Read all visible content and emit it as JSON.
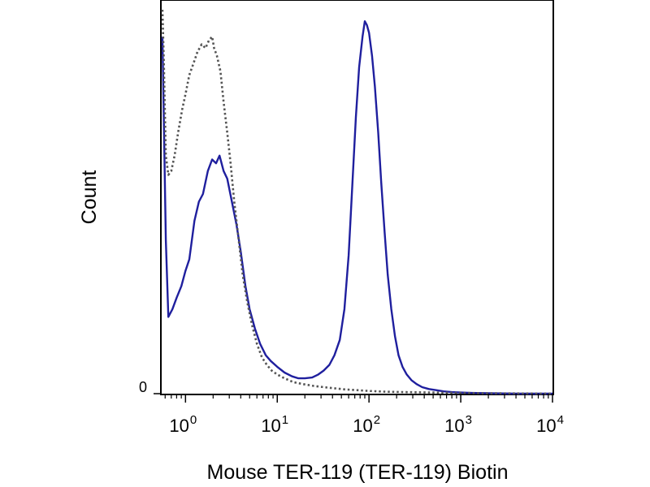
{
  "chart_data": {
    "type": "line",
    "title": "",
    "xlabel": "Mouse TER-119 (TER-119) Biotin",
    "ylabel": "Count",
    "xscale": "log",
    "xlim": [
      0.55,
      10000
    ],
    "ylim": [
      0,
      1.0
    ],
    "grid": false,
    "legend": "none",
    "x_ticks": [
      {
        "base": "10",
        "exp": "0",
        "value": 1
      },
      {
        "base": "10",
        "exp": "1",
        "value": 10
      },
      {
        "base": "10",
        "exp": "2",
        "value": 100
      },
      {
        "base": "10",
        "exp": "3",
        "value": 1000
      },
      {
        "base": "10",
        "exp": "4",
        "value": 10000
      }
    ],
    "y_ticks": [
      {
        "label": "0",
        "value": 0
      }
    ],
    "series": [
      {
        "color": "#1f1f9e",
        "style": "solid",
        "x": [
          0.56,
          0.58,
          0.61,
          0.65,
          0.72,
          0.8,
          0.9,
          1.0,
          1.1,
          1.25,
          1.4,
          1.55,
          1.75,
          1.95,
          2.15,
          2.35,
          2.6,
          2.85,
          3.2,
          3.6,
          4.0,
          4.5,
          5.0,
          5.7,
          6.5,
          7.5,
          8.5,
          10,
          12,
          14.5,
          17,
          20,
          24,
          28,
          32,
          37,
          42,
          48,
          54,
          60,
          66,
          72,
          78,
          85,
          90,
          95,
          100,
          108,
          116,
          126,
          136,
          148,
          160,
          175,
          192,
          210,
          232,
          258,
          290,
          330,
          380,
          450,
          540,
          650,
          800,
          1000,
          1300,
          2000,
          4000,
          10000
        ],
        "y": [
          0.93,
          0.72,
          0.4,
          0.2,
          0.22,
          0.25,
          0.28,
          0.32,
          0.35,
          0.45,
          0.5,
          0.52,
          0.58,
          0.61,
          0.6,
          0.62,
          0.58,
          0.56,
          0.5,
          0.44,
          0.37,
          0.28,
          0.22,
          0.17,
          0.13,
          0.1,
          0.085,
          0.07,
          0.055,
          0.045,
          0.04,
          0.04,
          0.042,
          0.05,
          0.06,
          0.075,
          0.1,
          0.14,
          0.22,
          0.36,
          0.55,
          0.72,
          0.85,
          0.93,
          0.97,
          0.96,
          0.94,
          0.88,
          0.8,
          0.68,
          0.55,
          0.42,
          0.31,
          0.22,
          0.15,
          0.1,
          0.07,
          0.05,
          0.035,
          0.025,
          0.017,
          0.012,
          0.009,
          0.006,
          0.004,
          0.003,
          0.002,
          0.001,
          0.0,
          0.0
        ]
      },
      {
        "color": "#555555",
        "style": "dotted",
        "x": [
          0.56,
          0.58,
          0.61,
          0.65,
          0.7,
          0.76,
          0.83,
          0.92,
          1.0,
          1.1,
          1.22,
          1.35,
          1.5,
          1.65,
          1.8,
          1.95,
          2.05,
          2.2,
          2.4,
          2.6,
          2.85,
          3.1,
          3.4,
          3.8,
          4.2,
          4.7,
          5.3,
          6.0,
          6.8,
          7.7,
          8.7,
          10,
          12,
          15,
          19,
          25,
          32,
          42,
          55,
          75,
          100,
          150,
          250,
          500,
          1000,
          2000,
          10000
        ],
        "y": [
          1.0,
          0.87,
          0.62,
          0.57,
          0.58,
          0.62,
          0.68,
          0.74,
          0.78,
          0.83,
          0.86,
          0.89,
          0.91,
          0.9,
          0.92,
          0.93,
          0.9,
          0.88,
          0.84,
          0.76,
          0.68,
          0.6,
          0.5,
          0.4,
          0.31,
          0.24,
          0.18,
          0.13,
          0.095,
          0.075,
          0.06,
          0.05,
          0.04,
          0.03,
          0.025,
          0.02,
          0.017,
          0.014,
          0.011,
          0.009,
          0.007,
          0.005,
          0.004,
          0.003,
          0.002,
          0.001,
          0.0
        ]
      }
    ]
  }
}
